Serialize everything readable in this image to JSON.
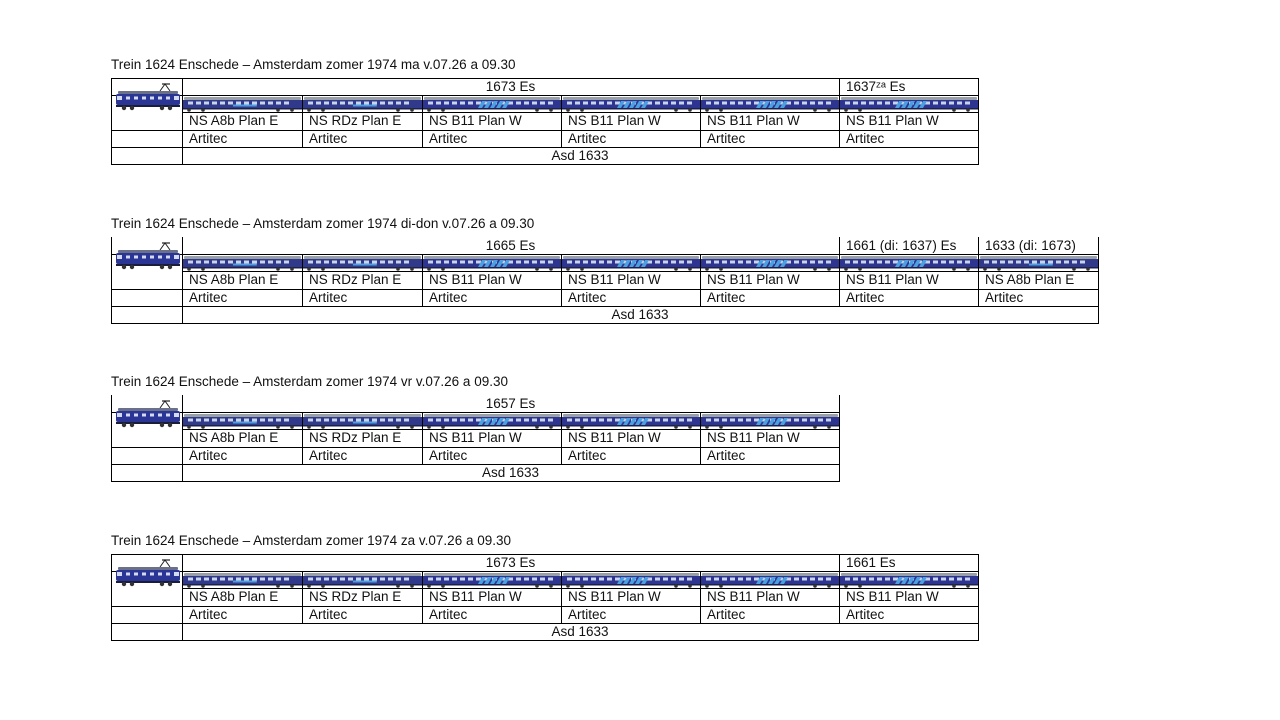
{
  "sections": [
    {
      "title": "Trein 1624 Enschede – Amsterdam zomer 1974 ma v.07.26 a 09.30",
      "groups": [
        {
          "label": "1673 Es",
          "span": 5
        },
        {
          "label": "1637ᶻᵃ Es",
          "span": 1
        }
      ],
      "coaches": [
        {
          "type": "NS A8b Plan E",
          "maker": "Artitec"
        },
        {
          "type": "NS RDz Plan E",
          "maker": "Artitec"
        },
        {
          "type": "NS B11 Plan W",
          "maker": "Artitec"
        },
        {
          "type": "NS B11 Plan W",
          "maker": "Artitec"
        },
        {
          "type": "NS B11 Plan W",
          "maker": "Artitec"
        },
        {
          "type": "NS B11 Plan W",
          "maker": "Artitec"
        }
      ],
      "footer": "Asd 1633"
    },
    {
      "title": "Trein 1624 Enschede – Amsterdam zomer 1974 di-don v.07.26 a 09.30",
      "groups": [
        {
          "label": "1665 Es",
          "span": 5
        },
        {
          "label": "1661 (di: 1637) Es",
          "span": 1
        },
        {
          "label": "1633 (di: 1673)",
          "span": 1
        }
      ],
      "coaches": [
        {
          "type": "NS A8b Plan E",
          "maker": "Artitec"
        },
        {
          "type": "NS RDz Plan E",
          "maker": "Artitec"
        },
        {
          "type": "NS B11 Plan W",
          "maker": "Artitec"
        },
        {
          "type": "NS B11 Plan W",
          "maker": "Artitec"
        },
        {
          "type": "NS B11 Plan W",
          "maker": "Artitec"
        },
        {
          "type": "NS B11 Plan W",
          "maker": "Artitec"
        },
        {
          "type": "NS A8b Plan E",
          "maker": "Artitec"
        }
      ],
      "footer": "Asd 1633"
    },
    {
      "title": "Trein 1624 Enschede – Amsterdam zomer 1974 vr v.07.26 a 09.30",
      "groups": [
        {
          "label": "1657 Es",
          "span": 5
        }
      ],
      "coaches": [
        {
          "type": "NS A8b Plan E",
          "maker": "Artitec"
        },
        {
          "type": "NS RDz Plan E",
          "maker": "Artitec"
        },
        {
          "type": "NS B11 Plan W",
          "maker": "Artitec"
        },
        {
          "type": "NS B11 Plan W",
          "maker": "Artitec"
        },
        {
          "type": "NS B11 Plan W",
          "maker": "Artitec"
        }
      ],
      "footer": "Asd 1633"
    },
    {
      "title": "Trein 1624 Enschede – Amsterdam zomer 1974 za v.07.26 a 09.30",
      "groups": [
        {
          "label": "1673 Es",
          "span": 5
        },
        {
          "label": "1661 Es",
          "span": 1
        }
      ],
      "coaches": [
        {
          "type": "NS A8b Plan E",
          "maker": "Artitec"
        },
        {
          "type": "NS RDz Plan E",
          "maker": "Artitec"
        },
        {
          "type": "NS B11 Plan W",
          "maker": "Artitec"
        },
        {
          "type": "NS B11 Plan W",
          "maker": "Artitec"
        },
        {
          "type": "NS B11 Plan W",
          "maker": "Artitec"
        },
        {
          "type": "NS B11 Plan W",
          "maker": "Artitec"
        }
      ],
      "footer": "Asd 1633"
    }
  ],
  "colors": {
    "coach_body": "#2e3590",
    "coach_stripe": "#4aa0e0",
    "coach_roof": "#9aa0a8",
    "plan_e_body": "#313a8a",
    "loco_body": "#2a3596"
  }
}
